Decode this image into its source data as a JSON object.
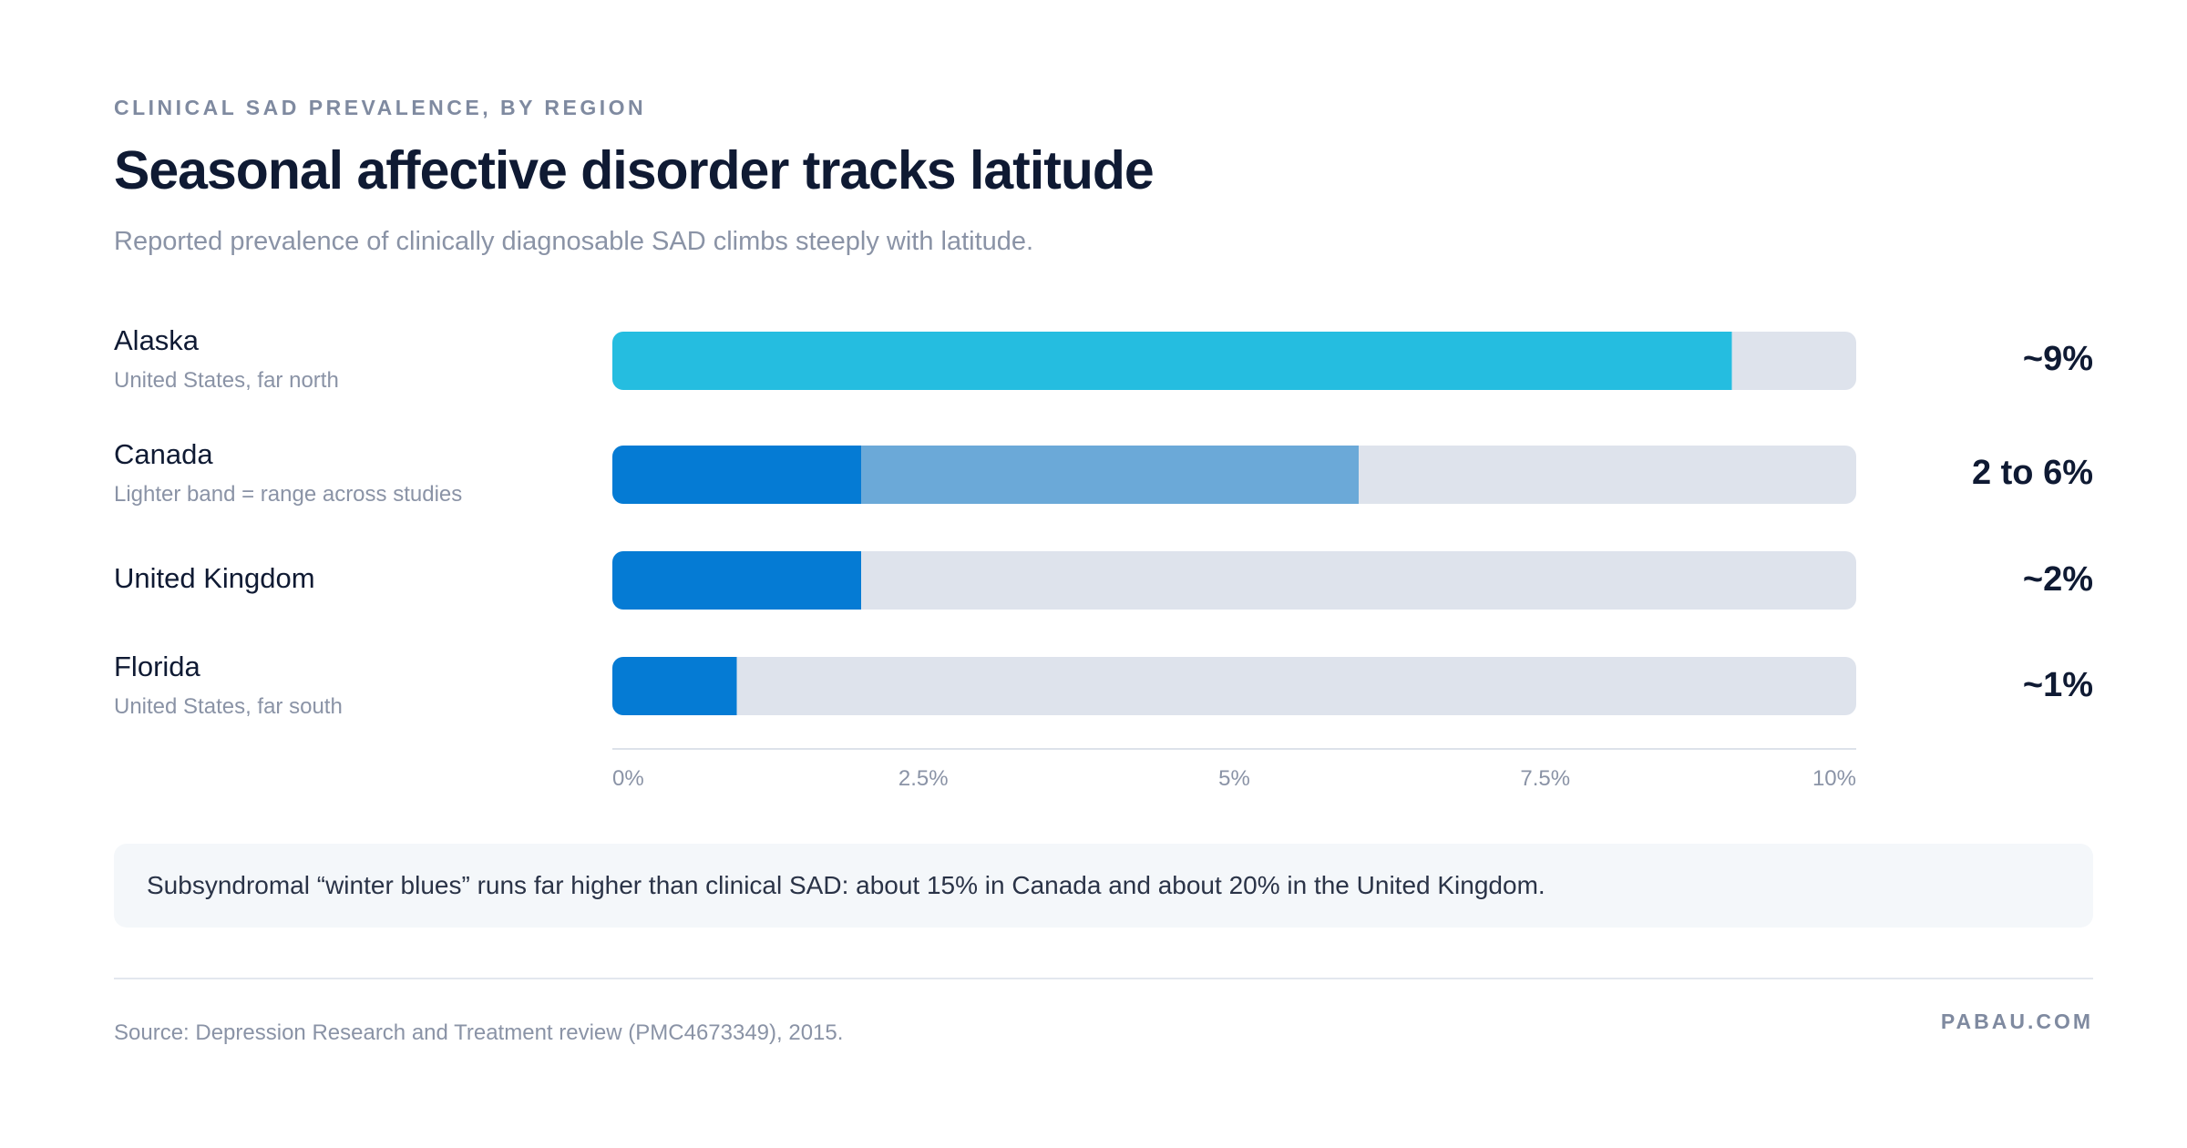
{
  "header": {
    "eyebrow": "CLINICAL SAD PREVALENCE, BY REGION",
    "title": "Seasonal affective disorder tracks latitude",
    "subtitle": "Reported prevalence of clinically diagnosable SAD climbs steeply with latitude."
  },
  "rows": [
    {
      "label": "Alaska",
      "sublabel": "United States, far north",
      "value_label": "~9%"
    },
    {
      "label": "Canada",
      "sublabel": "Lighter band = range across studies",
      "value_label": "2 to 6%"
    },
    {
      "label": "United Kingdom",
      "sublabel": "",
      "value_label": "~2%"
    },
    {
      "label": "Florida",
      "sublabel": "United States, far south",
      "value_label": "~1%"
    }
  ],
  "chart_data": {
    "type": "bar",
    "orientation": "horizontal",
    "categories": [
      "Alaska",
      "Canada",
      "United Kingdom",
      "Florida"
    ],
    "values": [
      9,
      2,
      2,
      1
    ],
    "ranges": [
      null,
      [
        2,
        6
      ],
      null,
      null
    ],
    "xlim": [
      0,
      10
    ],
    "xticks": [
      0,
      2.5,
      5,
      7.5,
      10
    ],
    "xtick_labels": [
      "0%",
      "2.5%",
      "5%",
      "7.5%",
      "10%"
    ],
    "grid": false,
    "legend": "none",
    "colors": {
      "highlight": "#25bde0",
      "bar": "#057bd4",
      "range_band": "#6ba9d8",
      "track": "#dee3ec",
      "axis": "#dde2ea"
    },
    "highlight_category": "Alaska"
  },
  "note": {
    "text": "Subsyndromal “winter blues” runs far higher than clinical SAD: about 15% in Canada and about 20% in the United Kingdom."
  },
  "footer": {
    "source": "Source: Depression Research and Treatment review (PMC4673349), 2015.",
    "brand": "PABAU.COM"
  }
}
